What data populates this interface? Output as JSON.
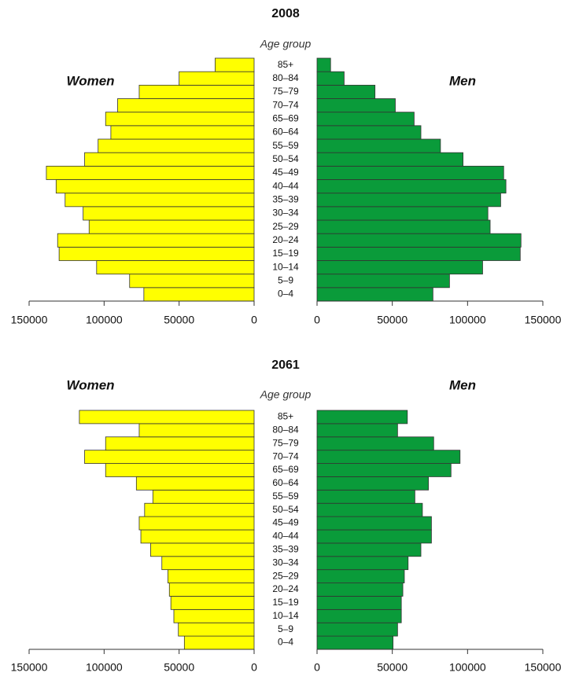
{
  "chart_data": [
    {
      "type": "pyramid",
      "title": "2008",
      "category_label": "Age group",
      "categories": [
        "0–4",
        "5–9",
        "10–14",
        "15–19",
        "20–24",
        "25–29",
        "30–34",
        "35–39",
        "40–44",
        "45–49",
        "50–54",
        "55–59",
        "60–64",
        "65–69",
        "70–74",
        "75–79",
        "80–84",
        "85+"
      ],
      "series": [
        {
          "name": "Women",
          "side": "left",
          "color": "#ffff00",
          "values": [
            73500,
            83000,
            105000,
            130000,
            131000,
            110000,
            114000,
            126000,
            132000,
            138500,
            113000,
            104000,
            95500,
            99000,
            91000,
            76600,
            50000,
            26000
          ]
        },
        {
          "name": "Men",
          "side": "right",
          "color": "#0a9b3a",
          "values": [
            77000,
            88000,
            110000,
            135000,
            135500,
            115000,
            113500,
            122000,
            125500,
            124000,
            97000,
            82000,
            69000,
            64500,
            52000,
            38500,
            18000,
            9000
          ]
        }
      ],
      "xlim": [
        0,
        150000
      ],
      "xticks": [
        0,
        50000,
        100000,
        150000
      ]
    },
    {
      "type": "pyramid",
      "title": "2061",
      "category_label": "Age group",
      "categories": [
        "0–4",
        "5–9",
        "10–14",
        "15–19",
        "20–24",
        "25–29",
        "30–34",
        "35–39",
        "40–44",
        "45–49",
        "50–54",
        "55–59",
        "60–64",
        "65–69",
        "70–74",
        "75–79",
        "80–84",
        "85+"
      ],
      "series": [
        {
          "name": "Women",
          "side": "left",
          "color": "#ffff00",
          "values": [
            46500,
            50500,
            53500,
            55500,
            56500,
            57500,
            61500,
            69000,
            75500,
            76600,
            73000,
            67500,
            78500,
            99000,
            113000,
            99000,
            76600,
            116500
          ]
        },
        {
          "name": "Men",
          "side": "right",
          "color": "#0a9b3a",
          "values": [
            50500,
            53500,
            56000,
            56000,
            57000,
            58000,
            60500,
            69000,
            76000,
            76000,
            70000,
            65000,
            74000,
            89000,
            95000,
            77500,
            53500,
            60000
          ]
        }
      ],
      "xlim": [
        0,
        150000
      ],
      "xticks": [
        0,
        50000,
        100000,
        150000
      ]
    }
  ]
}
